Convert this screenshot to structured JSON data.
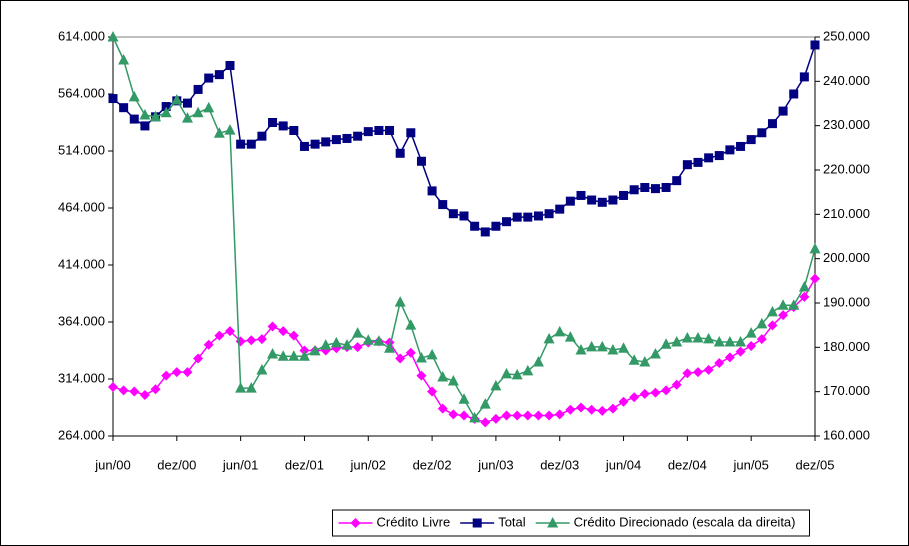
{
  "chart_data": {
    "type": "line",
    "categories": [
      "jun/00",
      null,
      null,
      null,
      null,
      null,
      "dez/00",
      null,
      null,
      null,
      null,
      null,
      "jun/01",
      null,
      null,
      null,
      null,
      null,
      "dez/01",
      null,
      null,
      null,
      null,
      null,
      "jun/02",
      null,
      null,
      null,
      null,
      null,
      "dez/02",
      null,
      null,
      null,
      null,
      null,
      "jun/03",
      null,
      null,
      null,
      null,
      null,
      "dez/03",
      null,
      null,
      null,
      null,
      null,
      "jun/04",
      null,
      null,
      null,
      null,
      null,
      "dez/04",
      null,
      null,
      null,
      null,
      null,
      "jun/05",
      null,
      null,
      null,
      null,
      null,
      "dez/05"
    ],
    "series": [
      {
        "name": "Crédito Livre",
        "color": "#ff00ff",
        "marker": "diamond",
        "values": [
          307000,
          304000,
          303000,
          300000,
          305000,
          317000,
          320000,
          320000,
          332000,
          344000,
          352000,
          356000,
          347000,
          348000,
          349000,
          360000,
          356000,
          352000,
          339000,
          339000,
          339000,
          341000,
          342000,
          342000,
          346000,
          347000,
          346000,
          332000,
          337000,
          317000,
          303000,
          288000,
          283000,
          282000,
          279000,
          276000,
          279000,
          282000,
          282000,
          282000,
          282000,
          282000,
          283000,
          287000,
          289000,
          287000,
          286000,
          288000,
          294000,
          298000,
          301000,
          302000,
          304000,
          309000,
          319000,
          320000,
          322000,
          328000,
          333000,
          338000,
          343000,
          349000,
          361000,
          370000,
          377000,
          386000,
          402000
        ]
      },
      {
        "name": "Total",
        "color": "#000080",
        "marker": "square",
        "values": [
          560000,
          552000,
          542000,
          536000,
          544000,
          553000,
          558000,
          556000,
          568000,
          578000,
          581000,
          589000,
          520000,
          520000,
          527000,
          539000,
          536000,
          532000,
          518000,
          520000,
          522000,
          524000,
          525000,
          527000,
          531000,
          532000,
          532000,
          512000,
          530000,
          505000,
          479000,
          467000,
          459000,
          457000,
          448000,
          443000,
          448000,
          452000,
          456000,
          456000,
          457000,
          459000,
          463000,
          470000,
          475000,
          471000,
          469000,
          471000,
          475000,
          480000,
          482000,
          481000,
          482000,
          488000,
          502000,
          504000,
          508000,
          510000,
          515000,
          518000,
          524000,
          530000,
          538000,
          549000,
          564000,
          579000,
          607000
        ]
      },
      {
        "name": "Crédito Direcionado (escala da direita)",
        "color": "#339966",
        "marker": "triangle",
        "axis": "y2",
        "values": [
          250000,
          244800,
          236500,
          232400,
          232000,
          232900,
          235800,
          231700,
          232900,
          234000,
          228300,
          229000,
          170800,
          170800,
          174900,
          178500,
          178000,
          178000,
          178000,
          179200,
          180500,
          181000,
          180500,
          183200,
          181600,
          181400,
          179800,
          190200,
          185000,
          177600,
          178300,
          173300,
          172400,
          168300,
          164100,
          167200,
          171300,
          174000,
          173800,
          174700,
          176700,
          181900,
          183500,
          182300,
          179400,
          180100,
          180100,
          179400,
          179800,
          177100,
          176700,
          178500,
          180700,
          181200,
          182100,
          182100,
          181900,
          181200,
          181200,
          181200,
          183200,
          185300,
          188000,
          189500,
          189500,
          193600,
          202200
        ]
      }
    ],
    "ylim": [
      264000,
      614000
    ],
    "yticks": [
      {
        "value": 264000,
        "label": "264.000"
      },
      {
        "value": 314000,
        "label": "314.000"
      },
      {
        "value": 364000,
        "label": "364.000"
      },
      {
        "value": 414000,
        "label": "414.000"
      },
      {
        "value": 464000,
        "label": "464.000"
      },
      {
        "value": 514000,
        "label": "514.000"
      },
      {
        "value": 564000,
        "label": "564.000"
      },
      {
        "value": 614000,
        "label": "614.000"
      }
    ],
    "y2lim": [
      160000,
      250000
    ],
    "y2ticks": [
      {
        "value": 160000,
        "label": "160.000"
      },
      {
        "value": 170000,
        "label": "170.000"
      },
      {
        "value": 180000,
        "label": "180.000"
      },
      {
        "value": 190000,
        "label": "190.000"
      },
      {
        "value": 200000,
        "label": "200.000"
      },
      {
        "value": 210000,
        "label": "210.000"
      },
      {
        "value": 220000,
        "label": "220.000"
      },
      {
        "value": 230000,
        "label": "230.000"
      },
      {
        "value": 240000,
        "label": "240.000"
      },
      {
        "value": 250000,
        "label": "250.000"
      }
    ],
    "grid": false,
    "legend": "bottom"
  }
}
